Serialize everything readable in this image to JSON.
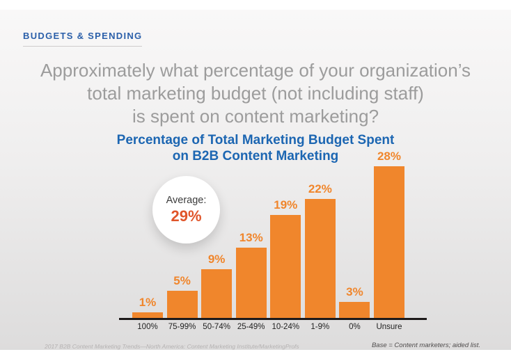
{
  "kicker": {
    "label": "BUDGETS & SPENDING"
  },
  "question": {
    "line1": "Approximately what percentage of your organization’s",
    "line2": "total marketing budget (not including staff)",
    "line3": "is spent on content marketing?"
  },
  "chart_data": {
    "type": "bar",
    "title": "Percentage of Total Marketing Budget Spent on B2B Content Marketing",
    "title_lines": [
      "Percentage of Total Marketing Budget Spent",
      "on B2B Content Marketing"
    ],
    "xlabel": "",
    "ylabel": "",
    "categories": [
      "100%",
      "75-99%",
      "50-74%",
      "25-49%",
      "10-24%",
      "1-9%",
      "0%",
      "Unsure"
    ],
    "values": [
      1,
      5,
      9,
      13,
      19,
      22,
      3,
      28
    ],
    "value_labels": [
      "1%",
      "5%",
      "9%",
      "13%",
      "19%",
      "22%",
      "3%",
      "28%"
    ],
    "ylim": [
      0,
      30
    ],
    "grid": false,
    "legend": false,
    "bar_color": "#f0862c",
    "annotation": {
      "label": "Average:",
      "value": "29%"
    }
  },
  "footer": {
    "source": "2017 B2B Content Marketing Trends—North America: Content Marketing Institute/MarketingProfs",
    "base": "Base = Content marketers; aided list."
  },
  "colors": {
    "kicker_blue": "#2b5fa9",
    "title_blue": "#1c66b2",
    "question_gray": "#9c9c9c",
    "bar_orange": "#f0862c",
    "average_value_orange": "#e0552a",
    "axis_black": "#1d1a1a",
    "background_top": "#f9f8f8",
    "background_bottom": "#dddcdc"
  }
}
